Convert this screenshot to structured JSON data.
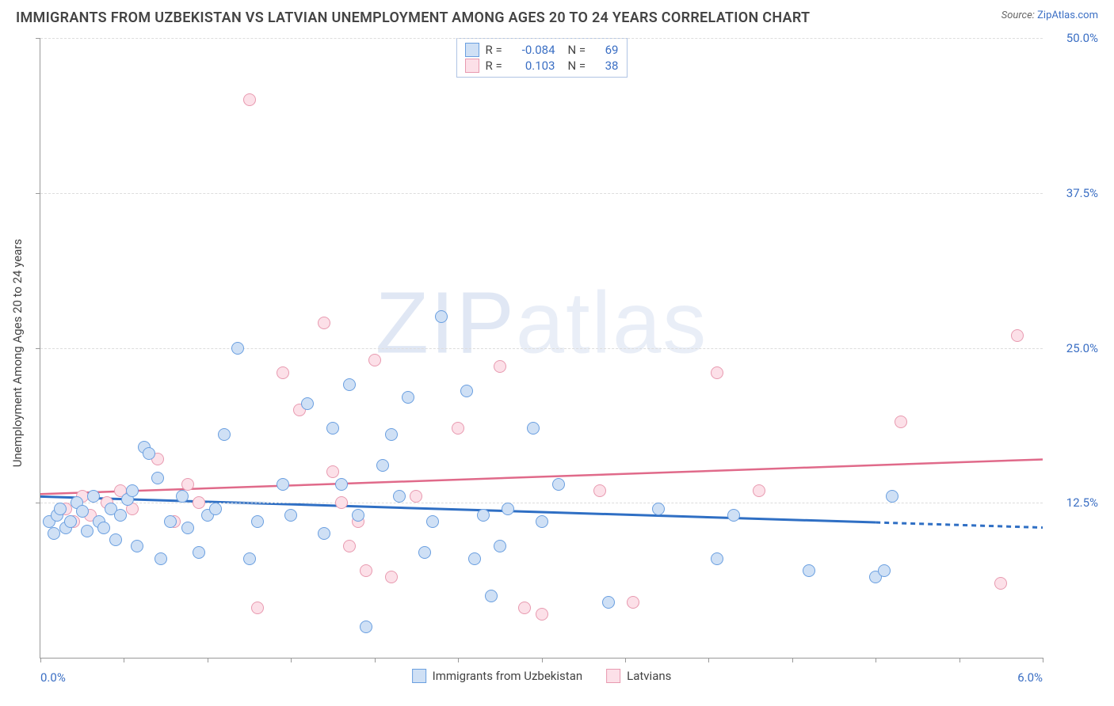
{
  "title": "IMMIGRANTS FROM UZBEKISTAN VS LATVIAN UNEMPLOYMENT AMONG AGES 20 TO 24 YEARS CORRELATION CHART",
  "source_prefix": "Source: ",
  "source_link": "ZipAtlas.com",
  "y_axis_title": "Unemployment Among Ages 20 to 24 years",
  "watermark_a": "ZIP",
  "watermark_b": "atlas",
  "chart": {
    "type": "scatter",
    "xlim": [
      0.0,
      6.0
    ],
    "ylim": [
      0.0,
      50.0
    ],
    "x_ticks": [
      0.0,
      0.5,
      1.0,
      1.5,
      2.0,
      2.5,
      3.0,
      3.5,
      4.0,
      4.5,
      5.0,
      5.5,
      6.0
    ],
    "x_tick_labels_shown": {
      "0": "0.0%",
      "12": "6.0%"
    },
    "y_ticks": [
      12.5,
      25.0,
      37.5,
      50.0
    ],
    "y_tick_labels": [
      "12.5%",
      "25.0%",
      "37.5%",
      "50.0%"
    ],
    "grid_color": "#dddddd",
    "background_color": "#ffffff",
    "point_radius": 8,
    "series": [
      {
        "key": "uzbekistan",
        "label": "Immigrants from Uzbekistan",
        "fill": "#cfe0f5",
        "stroke": "#6a9fe0",
        "R": "-0.084",
        "N": "69",
        "trend": {
          "y_at_x0": 13.0,
          "y_at_xmax": 10.5,
          "color": "#2f6fc4",
          "width": 3,
          "dash_after_x": 5.0
        },
        "points": [
          [
            0.05,
            11.0
          ],
          [
            0.08,
            10.0
          ],
          [
            0.1,
            11.5
          ],
          [
            0.12,
            12.0
          ],
          [
            0.15,
            10.5
          ],
          [
            0.18,
            11.0
          ],
          [
            0.22,
            12.5
          ],
          [
            0.25,
            11.8
          ],
          [
            0.28,
            10.2
          ],
          [
            0.32,
            13.0
          ],
          [
            0.35,
            11.0
          ],
          [
            0.38,
            10.5
          ],
          [
            0.42,
            12.0
          ],
          [
            0.45,
            9.5
          ],
          [
            0.48,
            11.5
          ],
          [
            0.52,
            12.8
          ],
          [
            0.55,
            13.5
          ],
          [
            0.58,
            9.0
          ],
          [
            0.62,
            17.0
          ],
          [
            0.65,
            16.5
          ],
          [
            0.7,
            14.5
          ],
          [
            0.72,
            8.0
          ],
          [
            0.78,
            11.0
          ],
          [
            0.85,
            13.0
          ],
          [
            0.88,
            10.5
          ],
          [
            0.95,
            8.5
          ],
          [
            1.0,
            11.5
          ],
          [
            1.05,
            12.0
          ],
          [
            1.1,
            18.0
          ],
          [
            1.18,
            25.0
          ],
          [
            1.25,
            8.0
          ],
          [
            1.3,
            11.0
          ],
          [
            1.45,
            14.0
          ],
          [
            1.5,
            11.5
          ],
          [
            1.6,
            20.5
          ],
          [
            1.7,
            10.0
          ],
          [
            1.75,
            18.5
          ],
          [
            1.8,
            14.0
          ],
          [
            1.85,
            22.0
          ],
          [
            1.9,
            11.5
          ],
          [
            1.95,
            2.5
          ],
          [
            2.05,
            15.5
          ],
          [
            2.1,
            18.0
          ],
          [
            2.15,
            13.0
          ],
          [
            2.2,
            21.0
          ],
          [
            2.3,
            8.5
          ],
          [
            2.35,
            11.0
          ],
          [
            2.4,
            27.5
          ],
          [
            2.55,
            21.5
          ],
          [
            2.6,
            8.0
          ],
          [
            2.65,
            11.5
          ],
          [
            2.7,
            5.0
          ],
          [
            2.75,
            9.0
          ],
          [
            2.8,
            12.0
          ],
          [
            2.95,
            18.5
          ],
          [
            3.0,
            11.0
          ],
          [
            3.1,
            14.0
          ],
          [
            3.4,
            4.5
          ],
          [
            3.7,
            12.0
          ],
          [
            4.05,
            8.0
          ],
          [
            4.15,
            11.5
          ],
          [
            4.6,
            7.0
          ],
          [
            5.0,
            6.5
          ],
          [
            5.05,
            7.0
          ],
          [
            5.1,
            13.0
          ]
        ]
      },
      {
        "key": "latvians",
        "label": "Latvians",
        "fill": "#fce0e8",
        "stroke": "#e89ab0",
        "R": "0.103",
        "N": "38",
        "trend": {
          "y_at_x0": 13.2,
          "y_at_xmax": 16.0,
          "color": "#e06a8a",
          "width": 2.5,
          "dash_after_x": null
        },
        "points": [
          [
            0.15,
            12.0
          ],
          [
            0.2,
            11.0
          ],
          [
            0.25,
            13.0
          ],
          [
            0.3,
            11.5
          ],
          [
            0.4,
            12.5
          ],
          [
            0.48,
            13.5
          ],
          [
            0.55,
            12.0
          ],
          [
            0.7,
            16.0
          ],
          [
            0.8,
            11.0
          ],
          [
            0.88,
            14.0
          ],
          [
            0.95,
            12.5
          ],
          [
            1.25,
            45.0
          ],
          [
            1.3,
            4.0
          ],
          [
            1.45,
            23.0
          ],
          [
            1.55,
            20.0
          ],
          [
            1.7,
            27.0
          ],
          [
            1.75,
            15.0
          ],
          [
            1.8,
            12.5
          ],
          [
            1.85,
            9.0
          ],
          [
            1.9,
            11.0
          ],
          [
            1.95,
            7.0
          ],
          [
            2.0,
            24.0
          ],
          [
            2.1,
            6.5
          ],
          [
            2.25,
            13.0
          ],
          [
            2.5,
            18.5
          ],
          [
            2.75,
            23.5
          ],
          [
            2.9,
            4.0
          ],
          [
            3.0,
            3.5
          ],
          [
            3.35,
            13.5
          ],
          [
            3.55,
            4.5
          ],
          [
            4.05,
            23.0
          ],
          [
            4.3,
            13.5
          ],
          [
            5.15,
            19.0
          ],
          [
            5.75,
            6.0
          ],
          [
            5.85,
            26.0
          ]
        ]
      }
    ]
  },
  "legend_top": {
    "R_label": "R =",
    "N_label": "N ="
  }
}
